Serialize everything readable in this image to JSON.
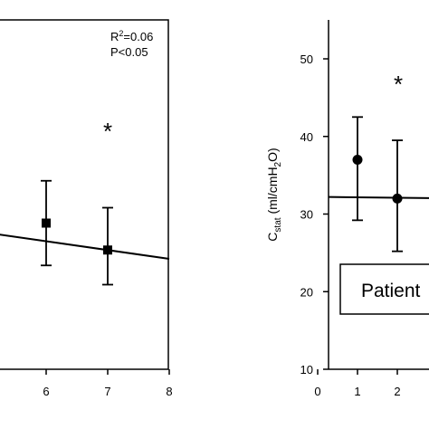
{
  "chart_data": [
    {
      "type": "scatter",
      "panel": "left",
      "xlim": [
        null,
        8
      ],
      "x_ticks": [
        6,
        7,
        8
      ],
      "markers": "square",
      "points": [
        {
          "x": 6,
          "y": 29.0,
          "err_low": 23.5,
          "err_high": 34.5
        },
        {
          "x": 7,
          "y": 25.5,
          "err_low": 21.0,
          "err_high": 31.0
        }
      ],
      "trendline_x": [
        null,
        8
      ],
      "annotations": {
        "r2_prefix": "R",
        "r2_exp": "2",
        "r2_value": "=0.06",
        "p_value": "P<0.05",
        "significance": "*"
      },
      "grid": false
    },
    {
      "type": "scatter",
      "panel": "right",
      "ylabel_base": "C",
      "ylabel_sub": "stat",
      "ylabel_unit_a": " (ml/cmH",
      "ylabel_unit_sub": "2",
      "ylabel_unit_b": "O)",
      "ylim": [
        10,
        55
      ],
      "y_ticks": [
        10,
        20,
        30,
        40,
        50
      ],
      "x_ticks": [
        0,
        1,
        2
      ],
      "markers": "circle",
      "points": [
        {
          "x": 1,
          "y": 37.0,
          "err_low": 29.2,
          "err_high": 42.5
        },
        {
          "x": 2,
          "y": 32.0,
          "err_low": 25.2,
          "err_high": 39.5
        }
      ],
      "trendline": {
        "y_at_x0": 32.2,
        "slope": -0.05
      },
      "annotations": {
        "significance": "*"
      },
      "legend_box_text": "Patient",
      "grid": false
    }
  ]
}
